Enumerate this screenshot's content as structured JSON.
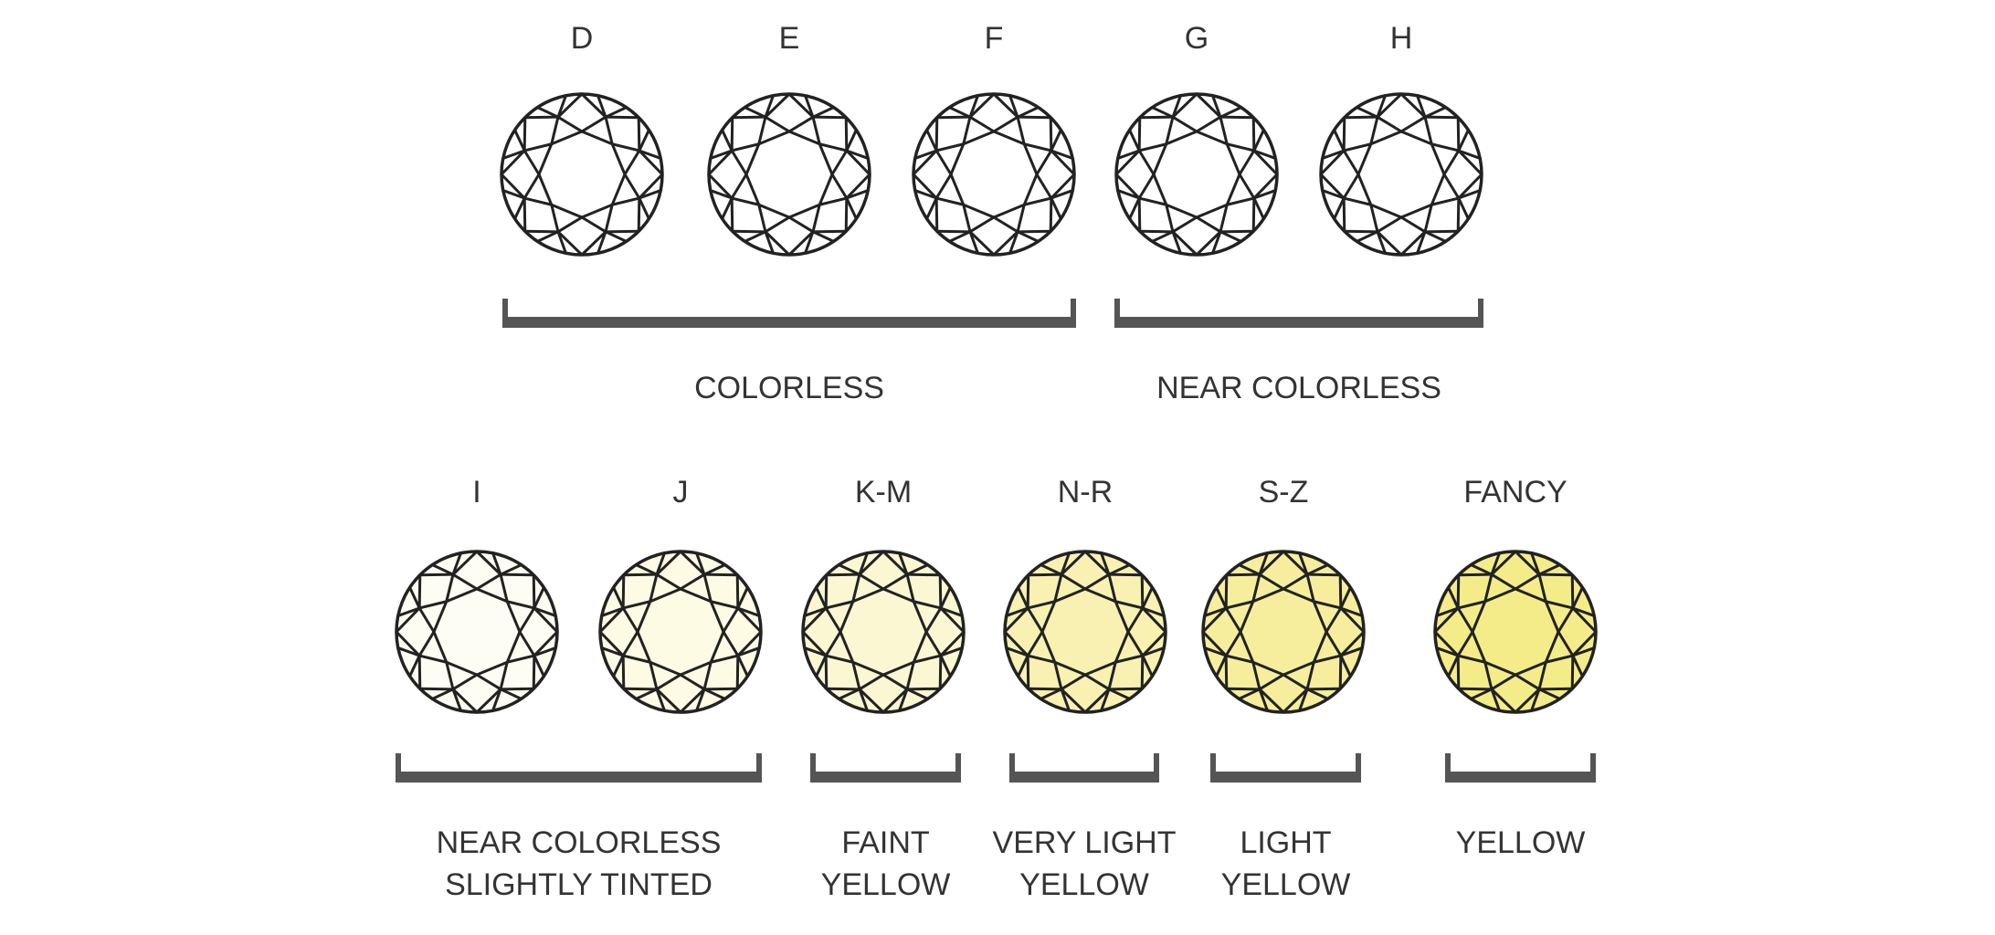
{
  "top_row": {
    "grades": [
      {
        "letter": "D",
        "fill": "#ffffff"
      },
      {
        "letter": "E",
        "fill": "#ffffff"
      },
      {
        "letter": "F",
        "fill": "#ffffff"
      },
      {
        "letter": "G",
        "fill": "#ffffff"
      },
      {
        "letter": "H",
        "fill": "#ffffff"
      }
    ],
    "groups": [
      {
        "lines": [
          "COLORLESS"
        ]
      },
      {
        "lines": [
          "NEAR COLORLESS"
        ]
      }
    ]
  },
  "bottom_row": {
    "grades": [
      {
        "letter": "I",
        "fill": "#fefdf3"
      },
      {
        "letter": "J",
        "fill": "#fdfbe4"
      },
      {
        "letter": "K-M",
        "fill": "#fbf7d2"
      },
      {
        "letter": "N-R",
        "fill": "#f8f1b2"
      },
      {
        "letter": "S-Z",
        "fill": "#f6ee9c"
      },
      {
        "letter": "FANCY",
        "fill": "#f4ec88"
      }
    ],
    "groups": [
      {
        "lines": [
          "NEAR COLORLESS",
          "SLIGHTLY TINTED"
        ]
      },
      {
        "lines": [
          "FAINT",
          "YELLOW"
        ]
      },
      {
        "lines": [
          "VERY LIGHT",
          "YELLOW"
        ]
      },
      {
        "lines": [
          "LIGHT",
          "YELLOW"
        ]
      },
      {
        "lines": [
          "YELLOW"
        ]
      }
    ]
  },
  "colors": {
    "text": "#333333",
    "bracket": "#555555",
    "outline": "#222222"
  }
}
